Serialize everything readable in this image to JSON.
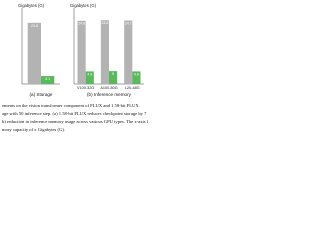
{
  "chart_data": [
    {
      "type": "bar",
      "y_label": "Gigabytes (G)",
      "caption": "(a) Storage",
      "categories": [
        null
      ],
      "ylim": [
        0,
        28
      ],
      "series": [
        {
          "color": "#b3b3b3",
          "values": [
            23.8
          ]
        },
        {
          "color": "#5cb85c",
          "values": [
            3.1
          ]
        }
      ]
    },
    {
      "type": "bar",
      "y_label": "Gigabytes (G)",
      "caption": "(b) Inference memory",
      "categories": [
        "V100-32G",
        "A100-80G",
        "L20-48G"
      ],
      "ylim": [
        0,
        28
      ],
      "series": [
        {
          "color": "#b3b3b3",
          "values": [
            24.6,
            24.8,
            24.7
          ]
        },
        {
          "color": "#5cb85c",
          "values": [
            4.9,
            5.0,
            4.9
          ]
        }
      ]
    }
  ],
  "text": {
    "lines": [
      "ements on the vision transformer component of FLUX and 1.58-bit FLUX.",
      "age with 50 inference step. (a) 1.58-bit FLUX reduces checkpoint storage by 7",
      "b) reduction in inference memory usage across various GPU types. The x-axis l",
      "mory capacity of x Gigabytes (G)."
    ]
  }
}
